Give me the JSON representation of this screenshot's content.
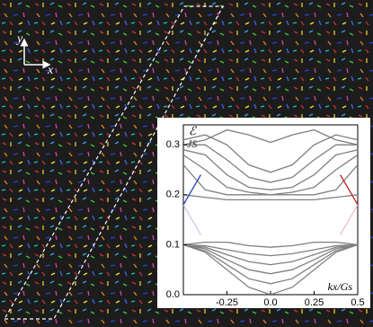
{
  "annotations": {
    "axis_y": "y",
    "axis_x": "x"
  },
  "chart_data": {
    "type": "line",
    "ylabel_top": "ℰ",
    "ylabel_bottom": "JS",
    "xlabel": "kx/Gs",
    "xlim": [
      -0.5,
      0.5
    ],
    "ylim": [
      0,
      0.34
    ],
    "xticks": [
      -0.25,
      {
        "value": 0,
        "label": "0.0"
      },
      0.25,
      0.5
    ],
    "yticks": [
      {
        "value": 0,
        "label": "0.0"
      },
      0.1,
      0.2,
      0.3
    ],
    "x": [
      -0.5,
      -0.375,
      -0.25,
      -0.125,
      0,
      0.125,
      0.25,
      0.375,
      0.5
    ],
    "series": [
      {
        "color": "#808080",
        "values": [
          0.1,
          0.085,
          0.05,
          0.015,
          0.0,
          0.015,
          0.05,
          0.085,
          0.1
        ]
      },
      {
        "color": "#808080",
        "values": [
          0.1,
          0.088,
          0.06,
          0.032,
          0.022,
          0.032,
          0.06,
          0.088,
          0.1
        ]
      },
      {
        "color": "#808080",
        "values": [
          0.1,
          0.092,
          0.07,
          0.05,
          0.042,
          0.05,
          0.07,
          0.092,
          0.1
        ]
      },
      {
        "color": "#808080",
        "values": [
          0.1,
          0.095,
          0.08,
          0.066,
          0.06,
          0.066,
          0.08,
          0.095,
          0.1
        ]
      },
      {
        "color": "#808080",
        "values": [
          0.1,
          0.098,
          0.09,
          0.082,
          0.078,
          0.082,
          0.09,
          0.098,
          0.1
        ]
      },
      {
        "color": "#808080",
        "values": [
          0.1,
          0.105,
          0.105,
          0.098,
          0.095,
          0.098,
          0.105,
          0.105,
          0.1
        ]
      },
      {
        "color": "#808080",
        "values": [
          0.2,
          0.195,
          0.19,
          0.19,
          0.19,
          0.19,
          0.19,
          0.195,
          0.2
        ]
      },
      {
        "color": "#808080",
        "values": [
          0.26,
          0.21,
          0.2,
          0.2,
          0.2,
          0.2,
          0.2,
          0.21,
          0.26
        ]
      },
      {
        "color": "#808080",
        "values": [
          0.28,
          0.25,
          0.215,
          0.205,
          0.2,
          0.205,
          0.215,
          0.25,
          0.28
        ]
      },
      {
        "color": "#808080",
        "values": [
          0.29,
          0.28,
          0.24,
          0.215,
          0.21,
          0.215,
          0.24,
          0.28,
          0.29
        ]
      },
      {
        "color": "#808080",
        "values": [
          0.3,
          0.3,
          0.27,
          0.235,
          0.225,
          0.235,
          0.27,
          0.3,
          0.3
        ]
      },
      {
        "color": "#808080",
        "values": [
          0.31,
          0.32,
          0.3,
          0.26,
          0.245,
          0.26,
          0.3,
          0.32,
          0.31
        ]
      },
      {
        "color": "#808080",
        "values": [
          0.3,
          0.31,
          0.33,
          0.32,
          0.305,
          0.32,
          0.33,
          0.31,
          0.3
        ]
      },
      {
        "color": "#2040c0",
        "x": [
          -0.5,
          -0.4
        ],
        "values": [
          0.18,
          0.24
        ]
      },
      {
        "color": "#c0cce8",
        "x": [
          -0.5,
          -0.45,
          -0.4
        ],
        "values": [
          0.18,
          0.15,
          0.12
        ]
      },
      {
        "color": "#c02020",
        "x": [
          0.4,
          0.5
        ],
        "values": [
          0.24,
          0.18
        ]
      },
      {
        "color": "#ecc0c0",
        "x": [
          0.4,
          0.45,
          0.5
        ],
        "values": [
          0.12,
          0.15,
          0.18
        ]
      }
    ]
  }
}
